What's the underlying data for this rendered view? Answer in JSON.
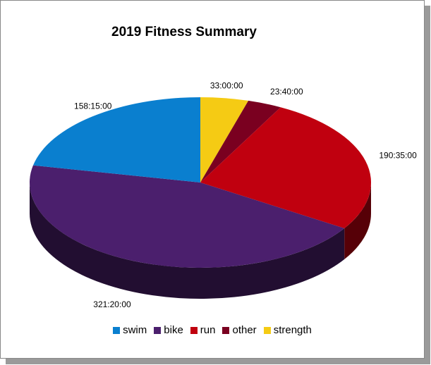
{
  "chart_data": {
    "type": "pie",
    "title": "2019 Fitness Summary",
    "categories": [
      "swim",
      "bike",
      "run",
      "other",
      "strength"
    ],
    "values_hours": [
      158.25,
      321.3333,
      190.5833,
      23.6667,
      33.0
    ],
    "labels": [
      "158:15:00",
      "321:20:00",
      "190:35:00",
      "23:40:00",
      "33:00:00"
    ],
    "colors": [
      "#0a7fcf",
      "#4b1f6d",
      "#c0000f",
      "#7a0020",
      "#f5cb14"
    ],
    "legend_position": "bottom"
  }
}
